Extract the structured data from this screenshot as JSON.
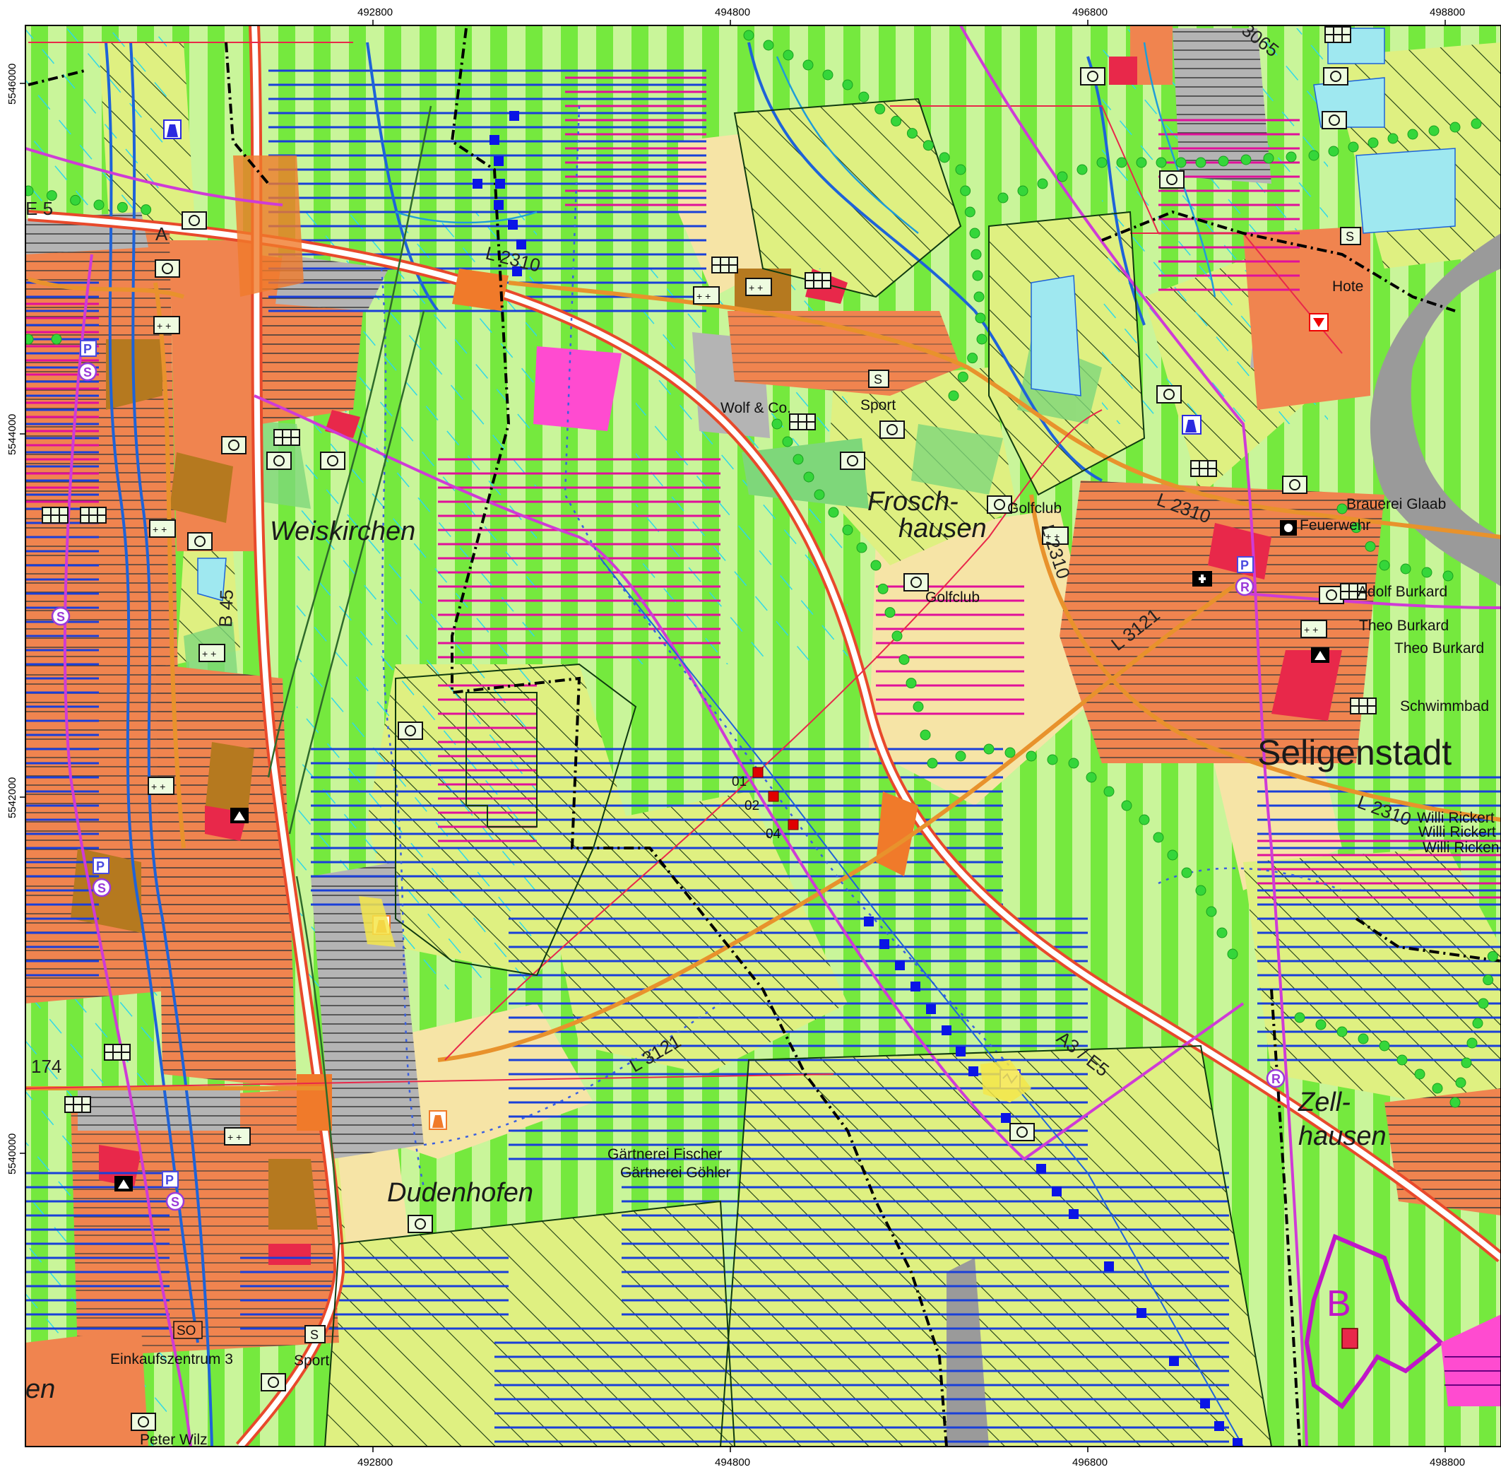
{
  "axes": {
    "x_ticks": [
      "492800",
      "494800",
      "496800",
      "498800"
    ],
    "y_ticks": [
      "5546000",
      "5544000",
      "5542000",
      "5540000"
    ]
  },
  "places": {
    "weiskirchen": "Weiskirchen",
    "frosch_1": "Frosch-",
    "frosch_2": "hausen",
    "seligenstadt": "Seligenstadt",
    "zell_1": "Zell-",
    "zell_2": "hausen",
    "dudenhofen": "Dudenhofen",
    "en_fragment": "en"
  },
  "roads": {
    "l2310_a": "L 2310",
    "l2310_b": "L 2310",
    "l2310_c": "L 2310",
    "l2310_d": "L 2310",
    "l3121_a": "L 3121",
    "l3121_b": "L 3121",
    "a3": "A3 / E5",
    "b45": "B 45",
    "n174": "174",
    "e5": "E 5",
    "r3065": "3065",
    "a_mark": "A"
  },
  "labels": {
    "wolf": "Wolf & Co.",
    "sport_1": "Sport",
    "sport_2": "Sport",
    "golfclub_1": "Golfclub",
    "golfclub_2": "Golfclub",
    "brauerei": "Brauerei Glaab",
    "feuerwehr": "Feuerwehr",
    "adolf": "Adolf Burkard",
    "theo_1": "Theo Burkard",
    "theo_2": "Theo Burkard",
    "schwimmbad": "Schwimmbad",
    "willi_1": "Willi Rickert",
    "willi_2": "Willi Rickert",
    "willi_3": "Willi Ricken",
    "hotel": "Hote",
    "gaertnerei_fischer": "Gärtnerei Fischer",
    "gaertnerei_goehler": "Gärtnerei Göhler",
    "einkauf": "Einkaufszentrum 3",
    "peter": "Peter Wilz",
    "so": "SO",
    "b_zone": "B"
  },
  "points": {
    "p01": "01",
    "p02": "02",
    "p04": "04"
  },
  "symbols": {
    "parking": "P",
    "sbahn": "S",
    "rail": "R",
    "sport": "S"
  },
  "colors": {
    "settlement": "#f0844f",
    "settlement_dark": "#b5791f",
    "industrial": "#b4b4b4",
    "agri_light": "#c9f59a",
    "agri_stripe": "#66e62e",
    "forest": "#dff081",
    "meadow": "#f6e4a6",
    "water": "#9fe8f0",
    "river": "#1e63d8",
    "motorway": "#e8492b",
    "road_main": "#e8922c",
    "rail": "#cf3bd6",
    "hatch_blue": "#1a3fd8",
    "hatch_magenta": "#e0109a",
    "hatch_cyan": "#2fd8e8",
    "green_dot": "#35d63a",
    "marker_red": "#e00000",
    "marker_blue": "#0a14e6",
    "grey_map_edge": "#9a9a9a"
  }
}
